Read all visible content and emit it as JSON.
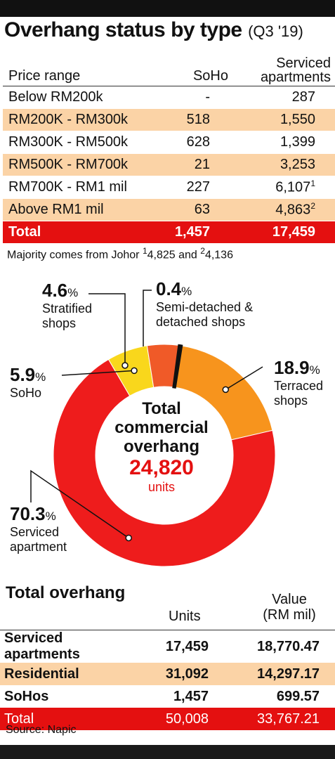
{
  "title": {
    "main": "Overhang status by type",
    "sub": "(Q3 '19)"
  },
  "table1": {
    "headers": {
      "col1": "Price range",
      "col2": "SoHo",
      "col3a": "Serviced",
      "col3b": "apartments"
    },
    "rows": [
      {
        "range": "Below RM200k",
        "soho": "-",
        "serviced": "287",
        "sup": ""
      },
      {
        "range": "RM200K - RM300k",
        "soho": "518",
        "serviced": "1,550",
        "sup": ""
      },
      {
        "range": "RM300K - RM500k",
        "soho": "628",
        "serviced": "1,399",
        "sup": ""
      },
      {
        "range": "RM500K - RM700k",
        "soho": "21",
        "serviced": "3,253",
        "sup": ""
      },
      {
        "range": "RM700K - RM1 mil",
        "soho": "227",
        "serviced": "6,107",
        "sup": "1"
      },
      {
        "range": "Above RM1 mil",
        "soho": "63",
        "serviced": "4,863",
        "sup": "2"
      }
    ],
    "total": {
      "label": "Total",
      "soho": "1,457",
      "serviced": "17,459"
    }
  },
  "note": {
    "text1": "Majority comes from Johor ",
    "sup1": "1",
    "val1": "4,825 and ",
    "sup2": "2",
    "val2": "4,136"
  },
  "chart_data": {
    "type": "pie",
    "title": "Total commercial overhang",
    "total_value": "24,820",
    "total_unit": "units",
    "slices": [
      {
        "key": "terraced",
        "pct": "18.9",
        "label1": "Terraced",
        "label2": "shops",
        "value": 18.9,
        "color": "#f7941d"
      },
      {
        "key": "serviced",
        "pct": "70.3",
        "label1": "Serviced",
        "label2": "apartment",
        "value": 70.3,
        "color": "#ee1c1c"
      },
      {
        "key": "soho",
        "pct": "5.9",
        "label1": "SoHo",
        "label2": "",
        "value": 5.9,
        "color": "#f9d71c"
      },
      {
        "key": "stratified",
        "pct": "4.6",
        "label1": "Stratified",
        "label2": "shops",
        "value": 4.6,
        "color": "#f05a28"
      },
      {
        "key": "semi",
        "pct": "0.4",
        "label1": "Semi-detached &",
        "label2": "detached shops",
        "value": 0.4,
        "color": "#111111"
      }
    ],
    "pct_sign": "%"
  },
  "center": {
    "line1": "Total",
    "line2": "commercial",
    "line3": "overhang",
    "number": "24,820",
    "unit": "units"
  },
  "table2": {
    "title": "Total overhang",
    "headers": {
      "units": "Units",
      "value1": "Value",
      "value2": "(RM mil)"
    },
    "rows": [
      {
        "label": "Serviced apartments",
        "units": "17,459",
        "value": "18,770.47"
      },
      {
        "label": "Residential",
        "units": "31,092",
        "value": "14,297.17"
      },
      {
        "label": "SoHos",
        "units": "1,457",
        "value": "699.57"
      }
    ],
    "total": {
      "label": "Total",
      "units": "50,008",
      "value": "33,767.21"
    }
  },
  "source": "Source: Napic"
}
